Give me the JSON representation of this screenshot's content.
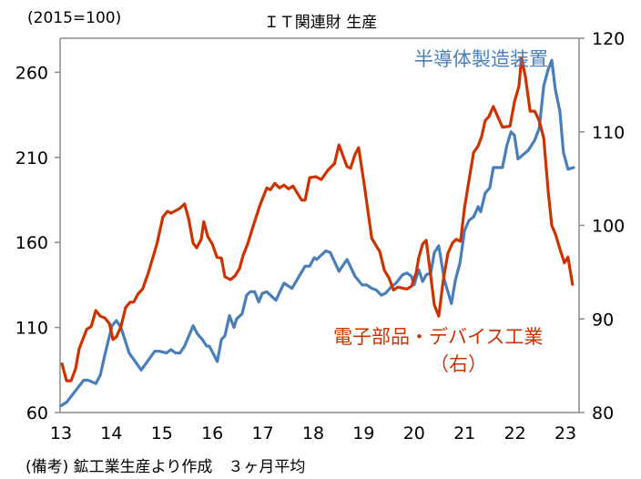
{
  "chart_data": {
    "type": "line",
    "title": "ＩＴ関連財 生産",
    "unit_label": "(2015=100)",
    "note": "(備考) 鉱工業生産より作成　３ヶ月平均",
    "xlim": [
      13,
      23.27
    ],
    "x_ticks": [
      "13",
      "14",
      "15",
      "16",
      "17",
      "18",
      "19",
      "20",
      "21",
      "22",
      "23"
    ],
    "y_left": {
      "lim": [
        60,
        280
      ],
      "ticks": [
        "60",
        "110",
        "160",
        "210",
        "260"
      ]
    },
    "y_right": {
      "lim": [
        80,
        120
      ],
      "ticks": [
        "80",
        "90",
        "100",
        "110",
        "120"
      ]
    },
    "grid": false,
    "series": [
      {
        "name": "半導体製造装置",
        "axis": "left",
        "color": "#4a7ebb",
        "points": [
          [
            13.0,
            64
          ],
          [
            13.11,
            66
          ],
          [
            13.45,
            79
          ],
          [
            13.54,
            79
          ],
          [
            13.69,
            77
          ],
          [
            13.78,
            82
          ],
          [
            13.87,
            94
          ],
          [
            14.01,
            111
          ],
          [
            14.1,
            114
          ],
          [
            14.19,
            110
          ],
          [
            14.35,
            95
          ],
          [
            14.59,
            85
          ],
          [
            14.86,
            96
          ],
          [
            14.95,
            96
          ],
          [
            15.09,
            95
          ],
          [
            15.18,
            97
          ],
          [
            15.27,
            95
          ],
          [
            15.36,
            95
          ],
          [
            15.45,
            99
          ],
          [
            15.62,
            111
          ],
          [
            15.71,
            106
          ],
          [
            15.8,
            103
          ],
          [
            15.89,
            99
          ],
          [
            15.94,
            99
          ],
          [
            16.1,
            90
          ],
          [
            16.18,
            103
          ],
          [
            16.25,
            105
          ],
          [
            16.34,
            117
          ],
          [
            16.43,
            110
          ],
          [
            16.48,
            115
          ],
          [
            16.59,
            118
          ],
          [
            16.68,
            129
          ],
          [
            16.75,
            131
          ],
          [
            16.84,
            131
          ],
          [
            16.92,
            125
          ],
          [
            16.99,
            130
          ],
          [
            17.08,
            131
          ],
          [
            17.26,
            126
          ],
          [
            17.42,
            136
          ],
          [
            17.58,
            133
          ],
          [
            17.84,
            146
          ],
          [
            17.93,
            146
          ],
          [
            18.02,
            151
          ],
          [
            18.07,
            150
          ],
          [
            18.25,
            155
          ],
          [
            18.34,
            154
          ],
          [
            18.51,
            143
          ],
          [
            18.67,
            150
          ],
          [
            18.83,
            140
          ],
          [
            18.97,
            135
          ],
          [
            19.06,
            135
          ],
          [
            19.16,
            133
          ],
          [
            19.25,
            132
          ],
          [
            19.35,
            129
          ],
          [
            19.43,
            130
          ],
          [
            19.55,
            134
          ],
          [
            19.64,
            136
          ],
          [
            19.77,
            141
          ],
          [
            19.86,
            142
          ],
          [
            19.95,
            140
          ],
          [
            20.0,
            135
          ],
          [
            20.09,
            144
          ],
          [
            20.17,
            137
          ],
          [
            20.24,
            141
          ],
          [
            20.33,
            142
          ],
          [
            20.4,
            154
          ],
          [
            20.49,
            158
          ],
          [
            20.6,
            138
          ],
          [
            20.74,
            124
          ],
          [
            20.82,
            138
          ],
          [
            20.91,
            148
          ],
          [
            21.0,
            167
          ],
          [
            21.09,
            173
          ],
          [
            21.18,
            175
          ],
          [
            21.27,
            181
          ],
          [
            21.32,
            178
          ],
          [
            21.41,
            189
          ],
          [
            21.5,
            192
          ],
          [
            21.57,
            204
          ],
          [
            21.75,
            204
          ],
          [
            21.84,
            217
          ],
          [
            21.92,
            225
          ],
          [
            21.99,
            223
          ],
          [
            22.06,
            209
          ],
          [
            22.26,
            214
          ],
          [
            22.39,
            220
          ],
          [
            22.48,
            227
          ],
          [
            22.57,
            252
          ],
          [
            22.66,
            262
          ],
          [
            22.73,
            267
          ],
          [
            22.8,
            250
          ],
          [
            22.89,
            237
          ],
          [
            22.96,
            213
          ],
          [
            23.05,
            203
          ],
          [
            23.16,
            204
          ]
        ]
      },
      {
        "name": "電子部品・デバイス工業",
        "name_suffix": "（右）",
        "axis": "right",
        "color": "#cc3300",
        "points": [
          [
            13.02,
            85.2
          ],
          [
            13.11,
            83.4
          ],
          [
            13.2,
            83.4
          ],
          [
            13.29,
            84.7
          ],
          [
            13.36,
            86.8
          ],
          [
            13.51,
            88.9
          ],
          [
            13.6,
            89.2
          ],
          [
            13.69,
            90.9
          ],
          [
            13.78,
            90.3
          ],
          [
            13.87,
            90.1
          ],
          [
            13.96,
            89.5
          ],
          [
            14.03,
            87.8
          ],
          [
            14.1,
            88.1
          ],
          [
            14.19,
            89.2
          ],
          [
            14.28,
            91.2
          ],
          [
            14.37,
            91.8
          ],
          [
            14.44,
            91.8
          ],
          [
            14.53,
            92.7
          ],
          [
            14.62,
            93.2
          ],
          [
            14.73,
            94.9
          ],
          [
            14.9,
            98.0
          ],
          [
            15.02,
            100.9
          ],
          [
            15.11,
            101.5
          ],
          [
            15.18,
            101.3
          ],
          [
            15.35,
            101.8
          ],
          [
            15.45,
            102.3
          ],
          [
            15.53,
            100.7
          ],
          [
            15.62,
            98.1
          ],
          [
            15.69,
            97.6
          ],
          [
            15.78,
            98.5
          ],
          [
            15.83,
            100.4
          ],
          [
            15.91,
            98.8
          ],
          [
            16.0,
            98.0
          ],
          [
            16.09,
            96.6
          ],
          [
            16.18,
            96.5
          ],
          [
            16.25,
            94.5
          ],
          [
            16.36,
            94.2
          ],
          [
            16.45,
            94.6
          ],
          [
            16.54,
            95.4
          ],
          [
            16.61,
            96.8
          ],
          [
            16.7,
            98.0
          ],
          [
            16.79,
            99.6
          ],
          [
            16.94,
            102.1
          ],
          [
            17.08,
            104.0
          ],
          [
            17.15,
            103.8
          ],
          [
            17.24,
            104.5
          ],
          [
            17.33,
            104.0
          ],
          [
            17.42,
            104.3
          ],
          [
            17.51,
            103.9
          ],
          [
            17.6,
            104.2
          ],
          [
            17.77,
            102.7
          ],
          [
            17.84,
            102.7
          ],
          [
            17.93,
            105.1
          ],
          [
            18.05,
            105.2
          ],
          [
            18.16,
            104.9
          ],
          [
            18.29,
            105.9
          ],
          [
            18.42,
            106.6
          ],
          [
            18.51,
            108.6
          ],
          [
            18.67,
            106.3
          ],
          [
            18.74,
            106.1
          ],
          [
            18.83,
            107.6
          ],
          [
            18.9,
            108.3
          ],
          [
            19.01,
            104.4
          ],
          [
            19.16,
            98.6
          ],
          [
            19.23,
            98.0
          ],
          [
            19.32,
            97.2
          ],
          [
            19.41,
            95.2
          ],
          [
            19.5,
            94.4
          ],
          [
            19.59,
            93.1
          ],
          [
            19.68,
            93.4
          ],
          [
            19.86,
            93.2
          ],
          [
            19.95,
            93.5
          ],
          [
            20.04,
            94.9
          ],
          [
            20.09,
            96.5
          ],
          [
            20.17,
            98.0
          ],
          [
            20.24,
            98.4
          ],
          [
            20.33,
            94.6
          ],
          [
            20.4,
            91.5
          ],
          [
            20.49,
            90.3
          ],
          [
            20.58,
            94.2
          ],
          [
            20.67,
            97.0
          ],
          [
            20.76,
            98.1
          ],
          [
            20.83,
            98.5
          ],
          [
            20.92,
            98.3
          ],
          [
            21.0,
            101.9
          ],
          [
            21.09,
            104.9
          ],
          [
            21.18,
            107.8
          ],
          [
            21.27,
            108.5
          ],
          [
            21.34,
            109.5
          ],
          [
            21.41,
            111.2
          ],
          [
            21.48,
            111.6
          ],
          [
            21.57,
            112.7
          ],
          [
            21.66,
            111.6
          ],
          [
            21.75,
            110.5
          ],
          [
            21.9,
            110.6
          ],
          [
            21.99,
            113.2
          ],
          [
            22.08,
            114.9
          ],
          [
            22.13,
            117.9
          ],
          [
            22.21,
            115.8
          ],
          [
            22.3,
            112.2
          ],
          [
            22.39,
            112.2
          ],
          [
            22.48,
            111.2
          ],
          [
            22.57,
            109.3
          ],
          [
            22.66,
            103.5
          ],
          [
            22.73,
            100.0
          ],
          [
            22.8,
            99.1
          ],
          [
            22.89,
            97.5
          ],
          [
            22.98,
            96.0
          ],
          [
            23.05,
            96.6
          ],
          [
            23.14,
            93.7
          ]
        ]
      }
    ]
  }
}
